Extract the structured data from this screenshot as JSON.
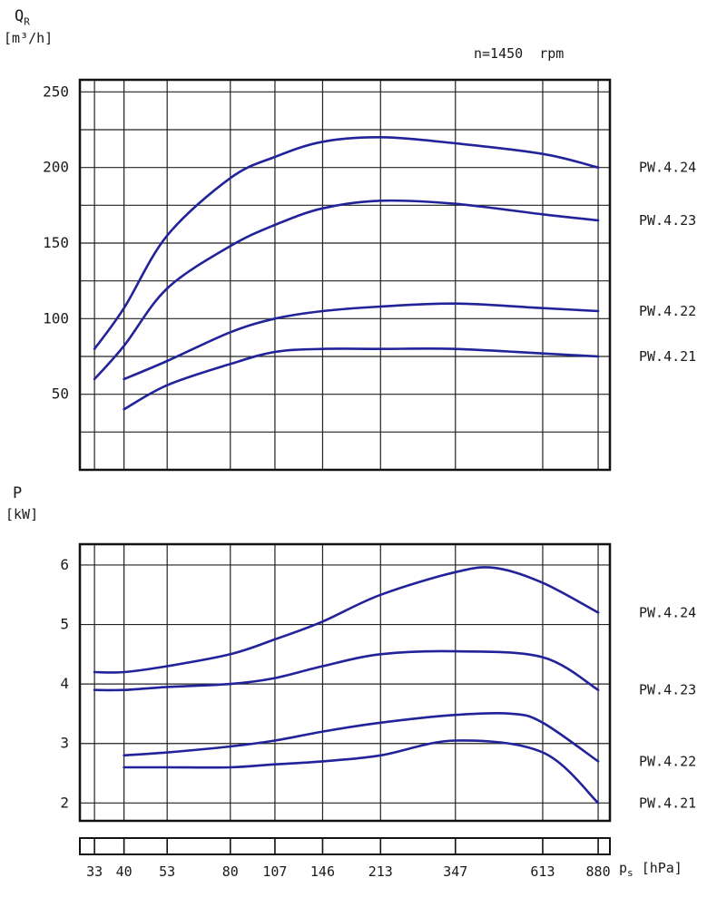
{
  "annotation": "n=1450  rpm",
  "colors": {
    "curve": "#22229a",
    "grid": "#222222",
    "frame": "#111111",
    "text": "#1a1a1a"
  },
  "x_axis": {
    "label_main": "p",
    "label_sub": "s",
    "label_unit": "[hPa]",
    "ticks": [
      33,
      40,
      53,
      80,
      107,
      146,
      213,
      347,
      613,
      880
    ]
  },
  "chart_data": [
    {
      "id": "flow-chart",
      "type": "line",
      "title": "",
      "ylabel_main": "Q",
      "ylabel_sub": "R",
      "ylabel_unit": "[m³/h]",
      "x_scale": "log",
      "xlim": [
        30,
        950
      ],
      "ylim": [
        0,
        258
      ],
      "yticks": [
        50,
        100,
        150,
        200,
        250
      ],
      "minor_ytick_step": 25,
      "grid": true,
      "series": [
        {
          "name": "PW.4.24",
          "points": [
            [
              33,
              80
            ],
            [
              40,
              107
            ],
            [
              53,
              155
            ],
            [
              80,
              193
            ],
            [
              107,
              207
            ],
            [
              146,
              217
            ],
            [
              213,
              220
            ],
            [
              347,
              216
            ],
            [
              613,
              209
            ],
            [
              880,
              200
            ]
          ]
        },
        {
          "name": "PW.4.23",
          "points": [
            [
              33,
              60
            ],
            [
              40,
              82
            ],
            [
              53,
              120
            ],
            [
              80,
              148
            ],
            [
              107,
              162
            ],
            [
              146,
              173
            ],
            [
              213,
              178
            ],
            [
              347,
              176
            ],
            [
              613,
              169
            ],
            [
              880,
              165
            ]
          ]
        },
        {
          "name": "PW.4.22",
          "points": [
            [
              40,
              60
            ],
            [
              53,
              72
            ],
            [
              80,
              91
            ],
            [
              107,
              100
            ],
            [
              146,
              105
            ],
            [
              213,
              108
            ],
            [
              347,
              110
            ],
            [
              613,
              107
            ],
            [
              880,
              105
            ]
          ]
        },
        {
          "name": "PW.4.21",
          "points": [
            [
              40,
              40
            ],
            [
              53,
              56
            ],
            [
              80,
              70
            ],
            [
              107,
              78
            ],
            [
              146,
              80
            ],
            [
              213,
              80
            ],
            [
              347,
              80
            ],
            [
              613,
              77
            ],
            [
              880,
              75
            ]
          ]
        }
      ]
    },
    {
      "id": "power-chart",
      "type": "line",
      "title": "",
      "ylabel_main": "P",
      "ylabel_sub": "",
      "ylabel_unit": "[kW]",
      "x_scale": "log",
      "xlim": [
        30,
        950
      ],
      "ylim": [
        1.7,
        6.35
      ],
      "yticks": [
        2,
        3,
        4,
        5,
        6
      ],
      "minor_ytick_step": null,
      "grid": true,
      "series": [
        {
          "name": "PW.4.24",
          "points": [
            [
              33,
              4.2
            ],
            [
              40,
              4.2
            ],
            [
              53,
              4.3
            ],
            [
              80,
              4.5
            ],
            [
              107,
              4.75
            ],
            [
              146,
              5.05
            ],
            [
              213,
              5.5
            ],
            [
              347,
              5.88
            ],
            [
              450,
              5.95
            ],
            [
              613,
              5.7
            ],
            [
              880,
              5.2
            ]
          ]
        },
        {
          "name": "PW.4.23",
          "points": [
            [
              33,
              3.9
            ],
            [
              40,
              3.9
            ],
            [
              53,
              3.95
            ],
            [
              80,
              4.0
            ],
            [
              107,
              4.1
            ],
            [
              146,
              4.3
            ],
            [
              213,
              4.5
            ],
            [
              347,
              4.55
            ],
            [
              613,
              4.45
            ],
            [
              880,
              3.9
            ]
          ]
        },
        {
          "name": "PW.4.22",
          "points": [
            [
              40,
              2.8
            ],
            [
              53,
              2.85
            ],
            [
              80,
              2.95
            ],
            [
              107,
              3.05
            ],
            [
              146,
              3.2
            ],
            [
              213,
              3.35
            ],
            [
              347,
              3.48
            ],
            [
              500,
              3.5
            ],
            [
              613,
              3.35
            ],
            [
              880,
              2.7
            ]
          ]
        },
        {
          "name": "PW.4.21",
          "points": [
            [
              40,
              2.6
            ],
            [
              53,
              2.6
            ],
            [
              80,
              2.6
            ],
            [
              107,
              2.65
            ],
            [
              146,
              2.7
            ],
            [
              213,
              2.8
            ],
            [
              347,
              3.05
            ],
            [
              613,
              2.85
            ],
            [
              880,
              2.0
            ]
          ]
        }
      ]
    }
  ]
}
